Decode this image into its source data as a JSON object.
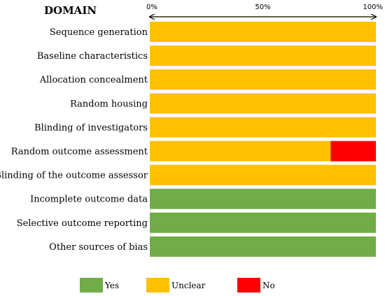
{
  "chart_data": {
    "type": "bar",
    "orientation": "horizontal",
    "stacked": true,
    "title": "DOMAIN",
    "xlim": [
      0,
      100
    ],
    "x_ticks": [
      "0%",
      "50%",
      "100%"
    ],
    "categories": [
      "Sequence generation",
      "Baseline characteristics",
      "Allocation concealment",
      "Random housing",
      "Blinding of investigators",
      "Random outcome assessment",
      "Blinding of the outcome assessor",
      "Incomplete outcome data",
      "Selective outcome reporting",
      "Other sources of bias"
    ],
    "series": [
      {
        "name": "Yes",
        "color": "#70AD47",
        "values": [
          0,
          0,
          0,
          0,
          0,
          0,
          0,
          100,
          100,
          100
        ]
      },
      {
        "name": "Unclear",
        "color": "#FFC000",
        "values": [
          100,
          100,
          100,
          100,
          100,
          80,
          100,
          0,
          0,
          0
        ]
      },
      {
        "name": "No",
        "color": "#FF0000",
        "values": [
          0,
          0,
          0,
          0,
          0,
          20,
          0,
          0,
          0,
          0
        ]
      }
    ],
    "legend_position": "bottom",
    "grid": false
  }
}
